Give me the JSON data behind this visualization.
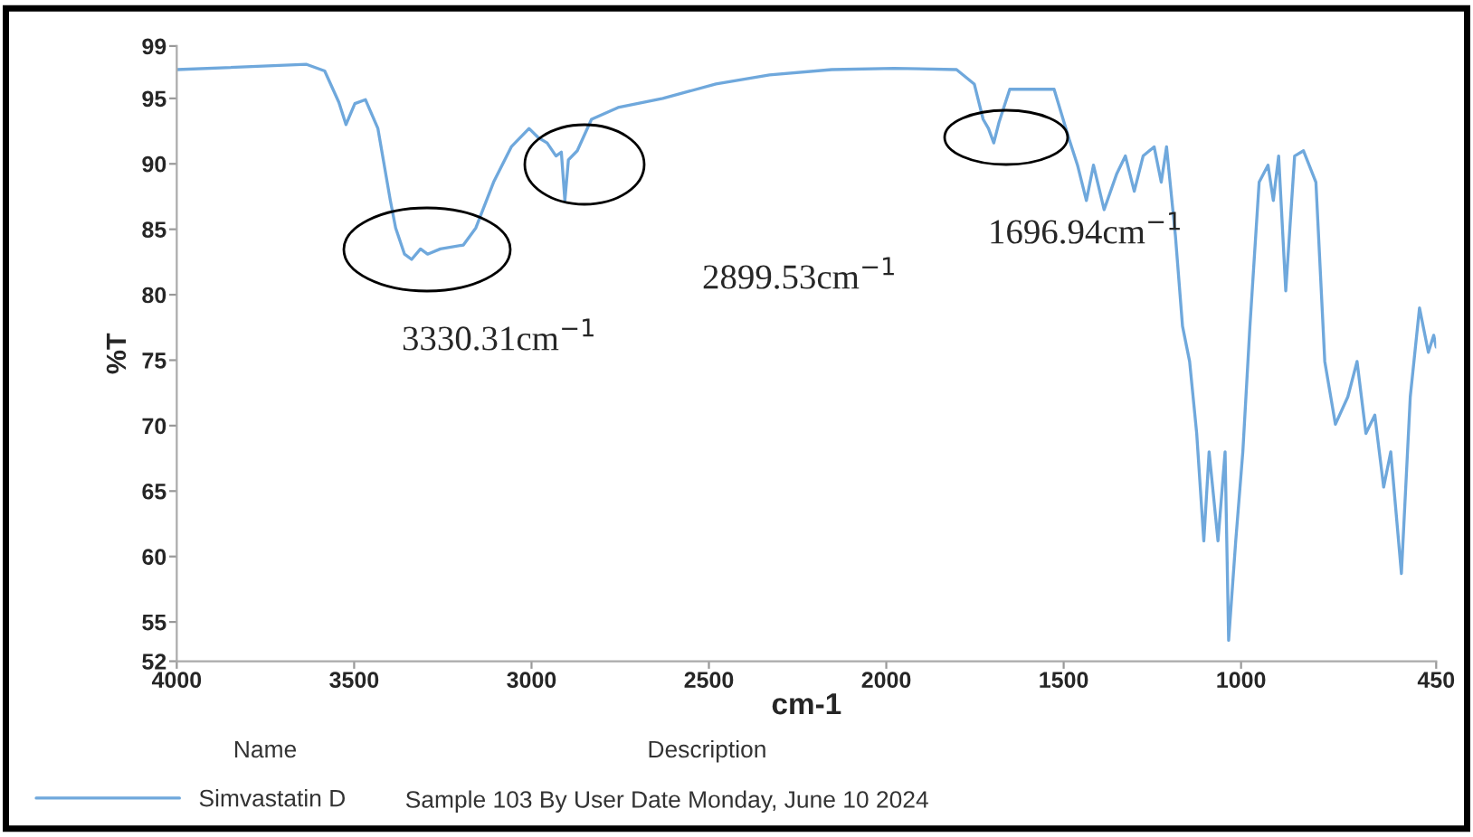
{
  "chart_data": {
    "type": "line",
    "xlabel": "cm-1",
    "ylabel": "%T",
    "xlim": [
      4000,
      450
    ],
    "xticks": [
      4000,
      3500,
      3000,
      2500,
      2000,
      1500,
      1000,
      450
    ],
    "ylim": [
      52,
      99
    ],
    "yticks": [
      52,
      55,
      60,
      65,
      70,
      75,
      80,
      85,
      90,
      95,
      99
    ],
    "grid": false,
    "legend": "bottom left",
    "marker": "none",
    "line_style": "solid",
    "series": [
      {
        "name": "Simvastatin D",
        "color": "#6fa8dc",
        "x": [
          4000,
          3634,
          3583,
          3543,
          3523,
          3498,
          3468,
          3433,
          3398,
          3383,
          3358,
          3338,
          3313,
          3293,
          3257,
          3192,
          3157,
          3107,
          3057,
          3007,
          2981,
          2956,
          2931,
          2916,
          2906,
          2896,
          2871,
          2831,
          2756,
          2630,
          2480,
          2329,
          2154,
          1978,
          1802,
          1752,
          1727,
          1712,
          1697,
          1682,
          1652,
          1527,
          1486,
          1461,
          1436,
          1416,
          1386,
          1351,
          1326,
          1301,
          1276,
          1245,
          1225,
          1210,
          1185,
          1165,
          1145,
          1125,
          1105,
          1090,
          1065,
          1045,
          1035,
          1015,
          995,
          975,
          949,
          924,
          909,
          894,
          874,
          849,
          824,
          789,
          764,
          734,
          699,
          673,
          648,
          623,
          598,
          578,
          548,
          523,
          497,
          472,
          457,
          450
        ],
        "values": [
          97.2,
          97.6,
          97.1,
          94.7,
          93,
          94.6,
          94.9,
          92.7,
          87.2,
          85.1,
          83.1,
          82.7,
          83.5,
          83.1,
          83.5,
          83.8,
          85.1,
          88.6,
          91.3,
          92.7,
          92,
          91.6,
          90.6,
          90.9,
          87.2,
          90.3,
          91,
          93.4,
          94.3,
          95,
          96.1,
          96.8,
          97.2,
          97.3,
          97.2,
          96.1,
          93.4,
          92.7,
          91.6,
          93.2,
          95.7,
          95.7,
          92,
          89.9,
          87.2,
          89.9,
          86.5,
          89.2,
          90.6,
          87.9,
          90.6,
          91.3,
          88.6,
          91.3,
          84.5,
          77.6,
          74.9,
          69.4,
          61.2,
          68,
          61.2,
          68,
          53.6,
          61.2,
          68,
          77.6,
          88.6,
          89.9,
          87.2,
          90.6,
          80.3,
          90.6,
          91,
          88.6,
          74.9,
          70.1,
          72.2,
          74.9,
          69.4,
          70.8,
          65.3,
          68,
          58.7,
          72.2,
          79,
          75.6,
          76.9,
          76
        ]
      }
    ],
    "annotations": [
      "3330.31cm$^{−1}$",
      "2899.53cm$^{−1}$",
      "1696.94cm$^{−1}$",
      "Name",
      "Description",
      "Sample 103 By User Date Monday, June 10 2024"
    ]
  }
}
